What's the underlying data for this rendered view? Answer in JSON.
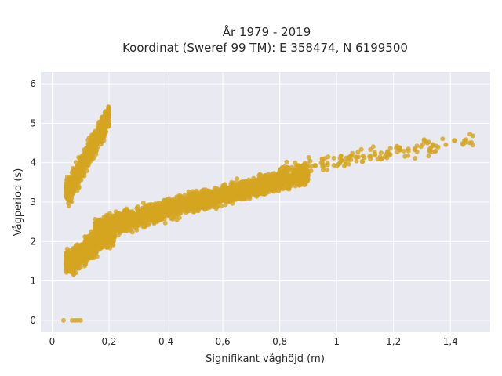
{
  "chart_data": {
    "type": "scatter",
    "title_line1": "År 1979 - 2019",
    "title_line2": "Koordinat (Sweref 99 TM): E 358474, N 6199500",
    "xlabel": "Signifikant våghöjd (m)",
    "ylabel": "Vågperiod (s)",
    "xlim": [
      -0.04,
      1.54
    ],
    "ylim": [
      -0.3,
      6.3
    ],
    "x_ticks": [
      0,
      0.2,
      0.4,
      0.6,
      0.8,
      1.0,
      1.2,
      1.4
    ],
    "x_tick_labels": [
      "0",
      "0,2",
      "0,4",
      "0,6",
      "0,8",
      "1",
      "1,2",
      "1,4"
    ],
    "y_ticks": [
      0,
      1,
      2,
      3,
      4,
      5,
      6
    ],
    "y_tick_labels": [
      "0",
      "1",
      "2",
      "3",
      "4",
      "5",
      "6"
    ],
    "grid": true,
    "point_color": "#d4a520",
    "plot_background": "#e9e9f1",
    "point_clusters": [
      {
        "x_range": [
          0.05,
          0.22
        ],
        "y_center_at_x": [
          [
            0.07,
            1.5
          ],
          [
            0.2,
            2.2
          ]
        ],
        "y_spread": 0.55,
        "count": 1100
      },
      {
        "x_range": [
          0.05,
          0.2
        ],
        "y_center_at_x": [
          [
            0.06,
            3.3
          ],
          [
            0.2,
            5.2
          ]
        ],
        "y_spread": 0.55,
        "count": 1000
      },
      {
        "x_range": [
          0.15,
          0.9
        ],
        "y_center_at_x": [
          [
            0.15,
            2.3
          ],
          [
            0.5,
            3.0
          ],
          [
            0.9,
            3.7
          ]
        ],
        "y_spread": 0.45,
        "count": 2600
      },
      {
        "x_range": [
          0.8,
          1.48
        ],
        "y_center_at_x": [
          [
            0.8,
            3.8
          ],
          [
            1.48,
            4.6
          ]
        ],
        "y_spread": 0.35,
        "count": 160
      }
    ],
    "outlier_points": [
      {
        "x": 0.04,
        "y": 0
      },
      {
        "x": 0.07,
        "y": 0
      },
      {
        "x": 0.08,
        "y": 0
      },
      {
        "x": 0.09,
        "y": 0
      },
      {
        "x": 0.1,
        "y": 0
      }
    ]
  }
}
